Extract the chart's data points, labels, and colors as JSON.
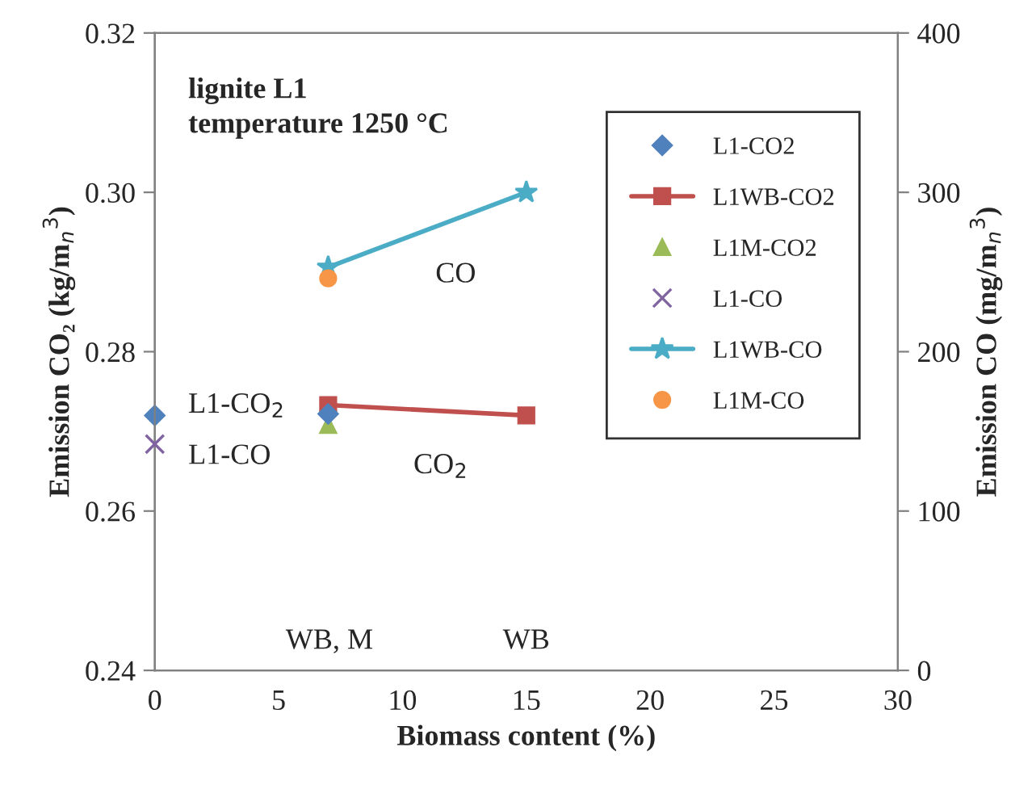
{
  "chart_data": {
    "type": "line",
    "xlabel": "Biomass content (%)",
    "ylabel": "Emission CO₂ (kg/m$_{n}$$^{3}$)",
    "y2label": "Emission CO (mg/m$_{n}$$^{3}$)",
    "xlim": [
      0,
      30
    ],
    "xticks": [
      0,
      5,
      10,
      15,
      20,
      25,
      30
    ],
    "ylim": [
      0.24,
      0.32
    ],
    "yticks": [
      0.24,
      0.26,
      0.28,
      {
        "value": 0.3,
        "label": "0.30"
      },
      0.32
    ],
    "y2lim": [
      0,
      400
    ],
    "y2ticks": [
      0,
      100,
      200,
      300,
      400
    ],
    "grid": false,
    "legend": "right",
    "series": [
      {
        "name": "L1-CO2",
        "type": "scatter",
        "marker": "diamond",
        "color": "#4f81bd",
        "x": [
          0,
          7
        ],
        "values": [
          0.272,
          0.2722
        ]
      },
      {
        "name": "L1WB-CO2",
        "marker": "square",
        "color": "#c0504d",
        "x": [
          7,
          15
        ],
        "values": [
          0.2733,
          0.272
        ]
      },
      {
        "name": "L1M-CO2",
        "type": "scatter",
        "marker": "triangle",
        "color": "#9bbb59",
        "x": [
          7
        ],
        "values": [
          0.2708
        ]
      },
      {
        "name": "L1-CO",
        "type": "scatter",
        "marker": "cross",
        "color": "#8064a2",
        "axis": "y2",
        "x": [
          0
        ],
        "values": [
          142
        ]
      },
      {
        "name": "L1WB-CO",
        "marker": "star",
        "color": "#4bacc6",
        "axis": "y2",
        "x": [
          7,
          15
        ],
        "values": [
          253,
          300
        ]
      },
      {
        "name": "L1M-CO",
        "type": "scatter",
        "marker": "circle",
        "color": "#f79646",
        "axis": "y2",
        "x": [
          7
        ],
        "values": [
          246
        ]
      }
    ],
    "annotations": [
      "lignite L1\ntemperature 1250 °C",
      "CO",
      "CO$_{2}$",
      "L1-CO$_{2}$",
      "L1-CO",
      "WB, M",
      "WB"
    ]
  }
}
